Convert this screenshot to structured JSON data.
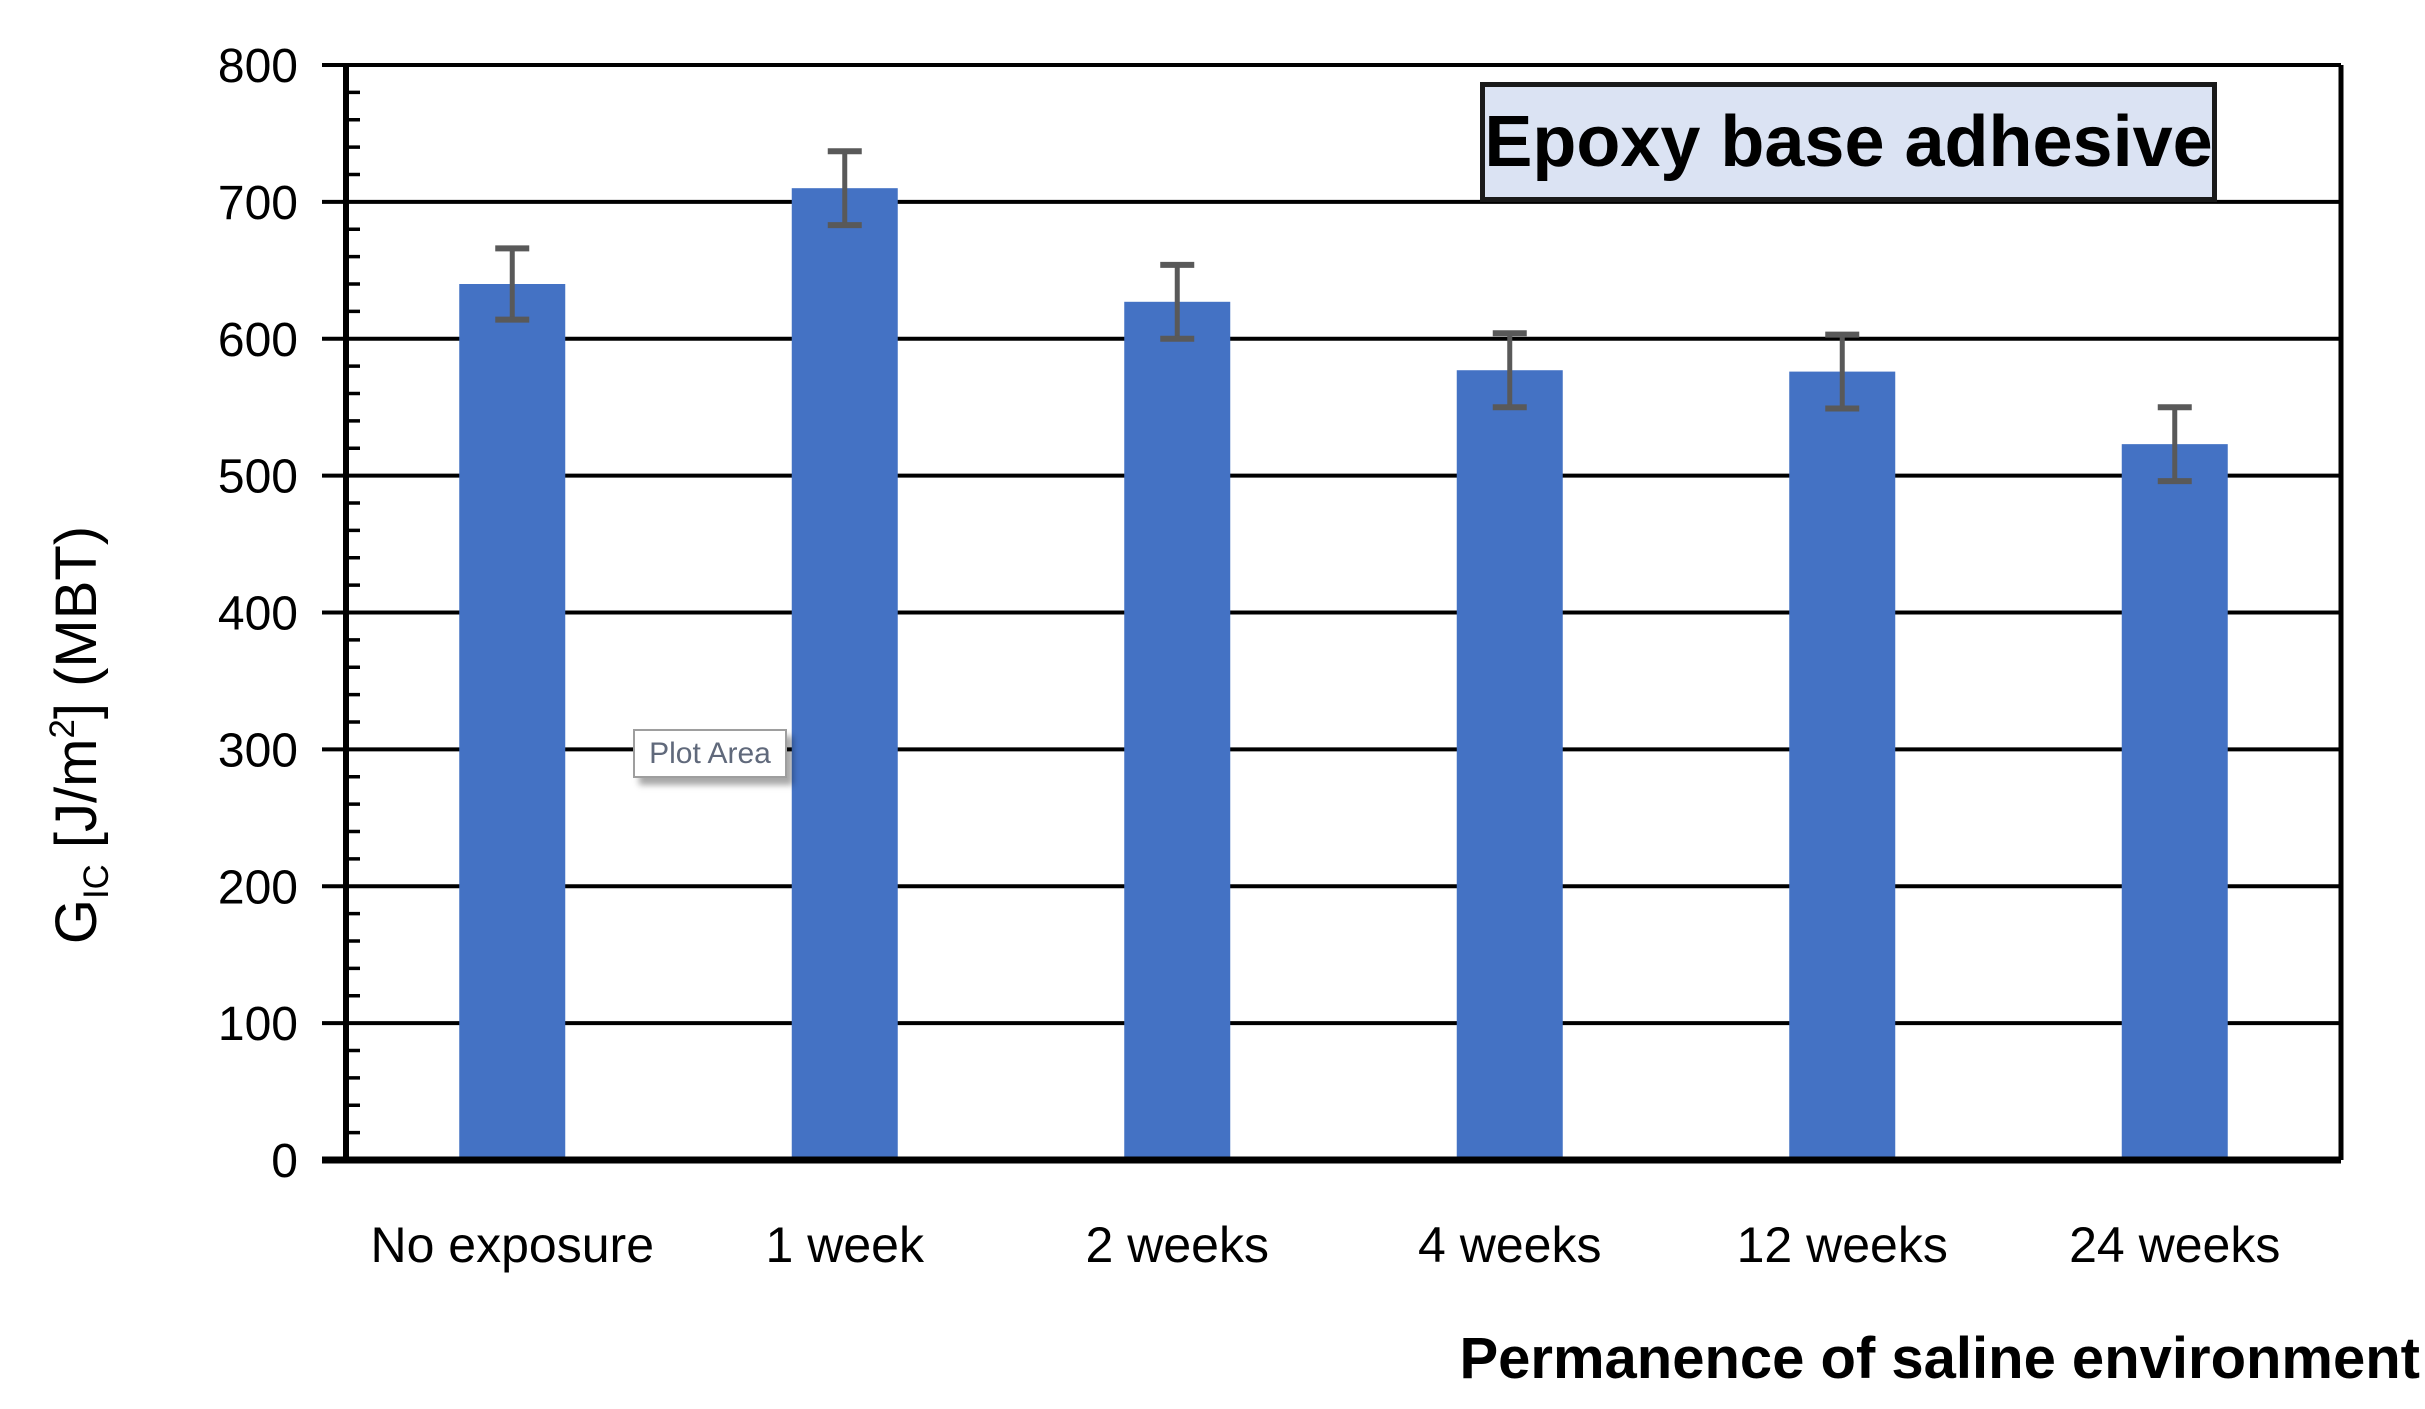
{
  "chart_data": {
    "type": "bar",
    "title": "Epoxy base adhesive",
    "xlabel": "Permanence of saline environment",
    "ylabel": "G_IC [J/m^2] (MBT)",
    "ylabel_parts": {
      "symbol": "G",
      "symbol_sub": "IC",
      "unit_open": " [J/m",
      "unit_sup": "2",
      "unit_close": "] (MBT)"
    },
    "categories": [
      "No exposure",
      "1 week",
      "2 weeks",
      "4 weeks",
      "12 weeks",
      "24 weeks"
    ],
    "values": [
      640,
      710,
      627,
      577,
      576,
      523
    ],
    "error_bars": [
      26,
      27,
      27,
      27,
      27,
      27
    ],
    "ylim": [
      0,
      800
    ],
    "ytick_step": 100,
    "yminor_step": 20,
    "ytick_labels": [
      "0",
      "100",
      "200",
      "300",
      "400",
      "500",
      "600",
      "700",
      "800"
    ],
    "grid": true,
    "legend": "none",
    "annotations": [
      "Plot Area"
    ]
  },
  "tooltip": {
    "label": "Plot Area"
  },
  "colors": {
    "bar": "#4472C4",
    "error_bar": "#595959",
    "grid_line": "#000000",
    "axis_line": "#000000",
    "title_box_bg": "#DBE3F3",
    "title_box_border": "#1A1A1A",
    "tooltip_border": "#9E9E9E",
    "tooltip_text": "#60697B"
  }
}
